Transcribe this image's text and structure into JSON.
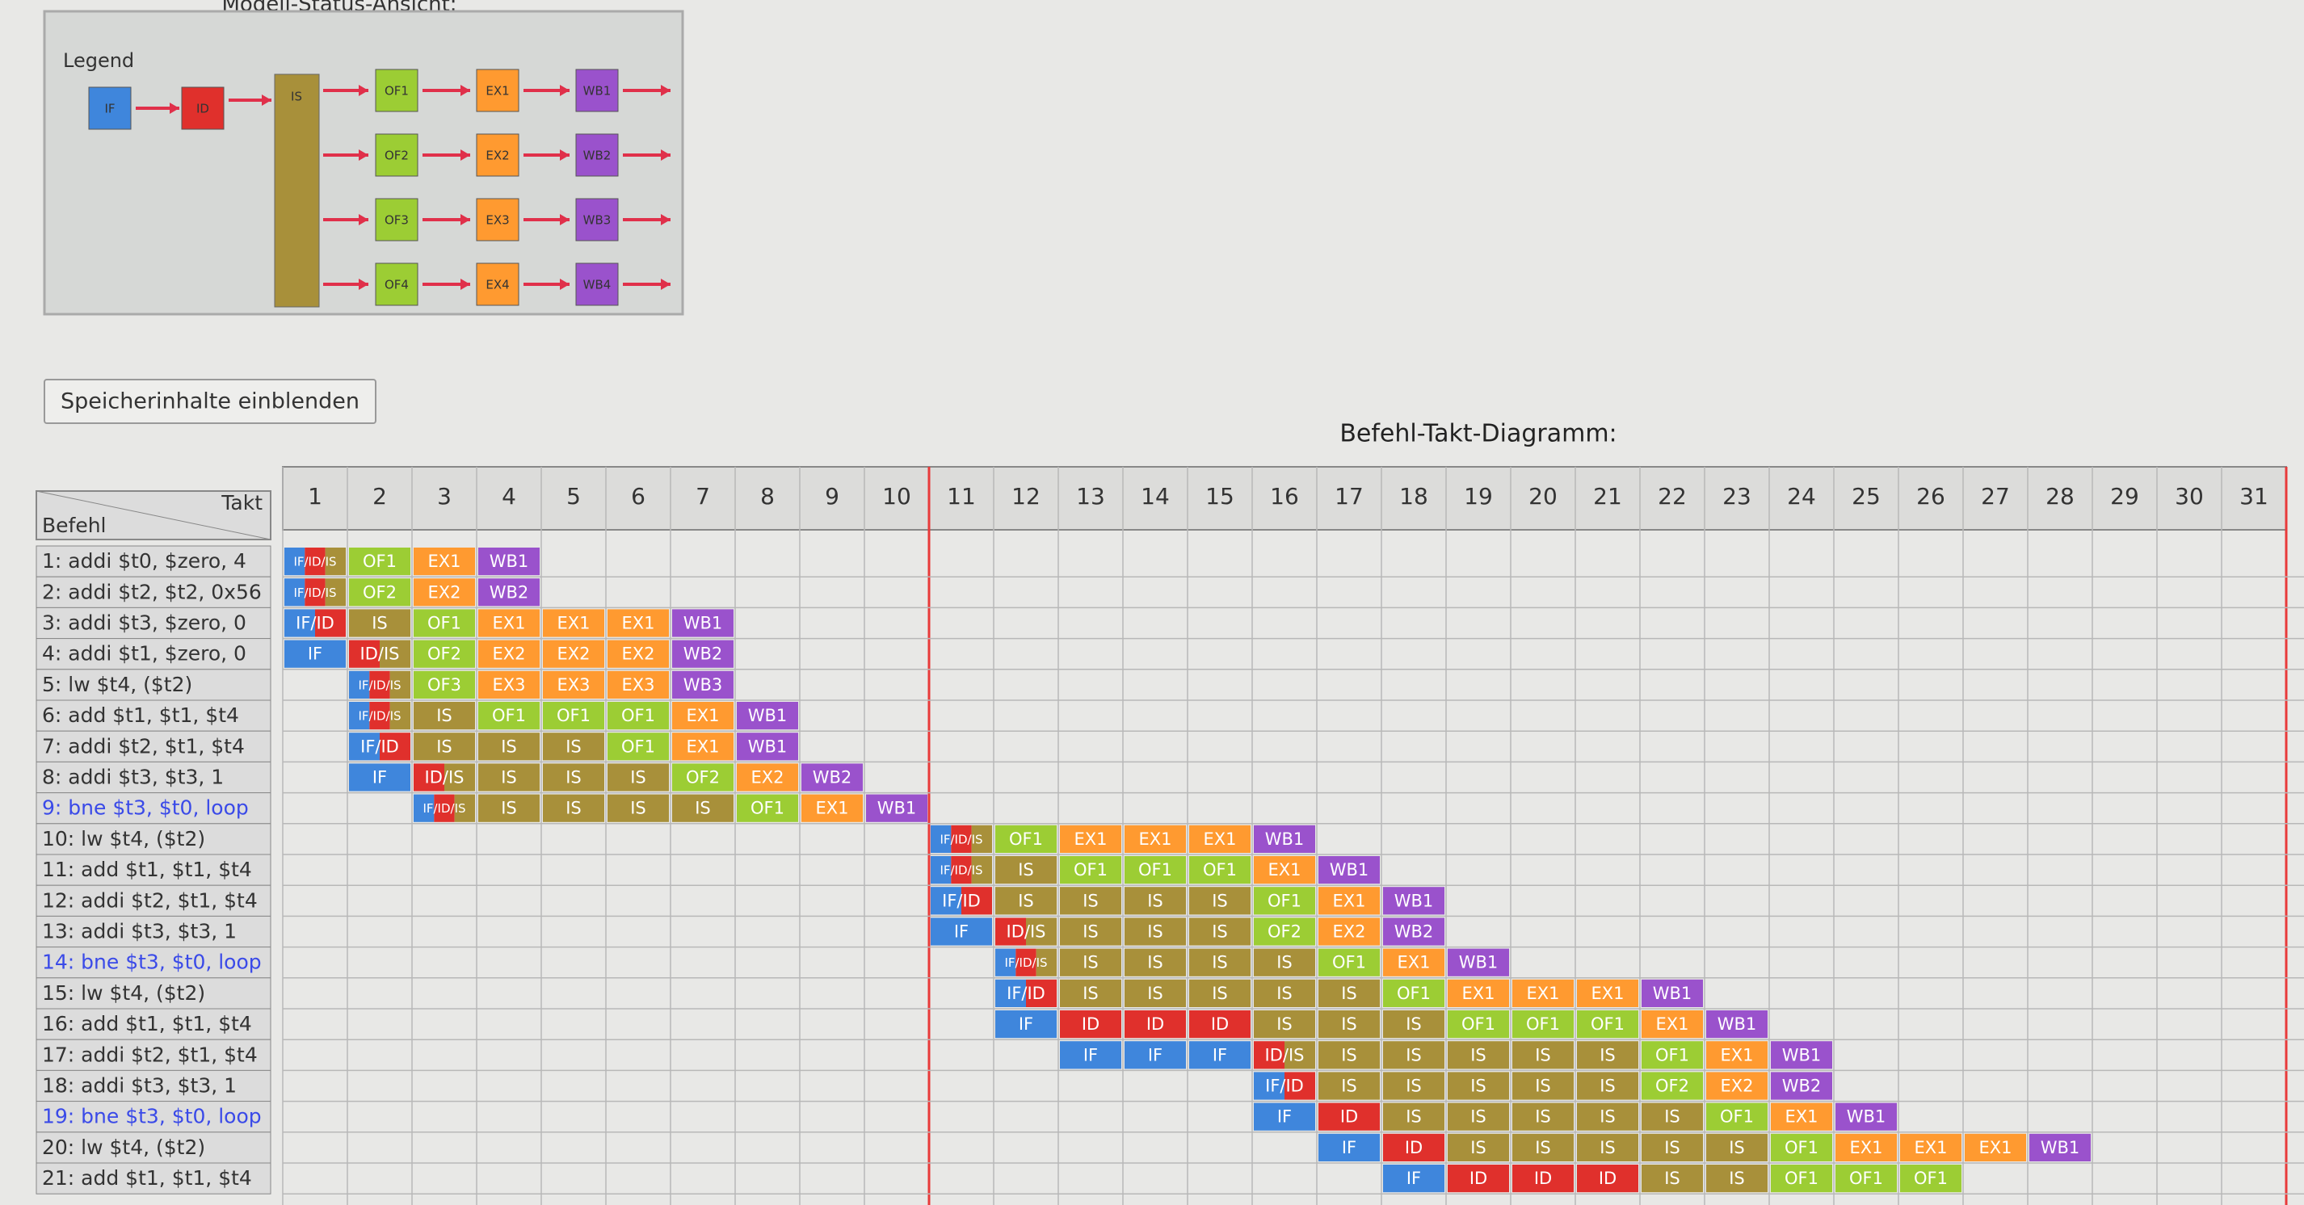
{
  "panel": {
    "title": "Modell-Status-Ansicht:",
    "legend": "Legend",
    "stages": {
      "if": "IF",
      "id": "ID",
      "is": "IS",
      "of": [
        "OF1",
        "OF2",
        "OF3",
        "OF4"
      ],
      "ex": [
        "EX1",
        "EX2",
        "EX3",
        "EX4"
      ],
      "wb": [
        "WB1",
        "WB2",
        "WB3",
        "WB4"
      ]
    }
  },
  "button": "Speicherinhalte einblenden",
  "diagram": {
    "title": "Befehl-Takt-Diagramm:",
    "corner_top": "Takt",
    "corner_bottom": "Befehl",
    "cycles": [
      1,
      2,
      3,
      4,
      5,
      6,
      7,
      8,
      9,
      10,
      11,
      12,
      13,
      14,
      15,
      16,
      17,
      18,
      19,
      20,
      21,
      22,
      23,
      24,
      25,
      26,
      27,
      28,
      29,
      30,
      31
    ],
    "rows": [
      {
        "instruction": "1:  addi $t0, $zero, 4",
        "cells": [
          "IF/ID/IS",
          "OF1",
          "EX1",
          "WB1",
          null,
          null,
          null,
          null,
          null,
          null,
          null,
          null,
          null,
          null,
          null,
          null,
          null,
          null,
          null,
          null,
          null,
          null,
          null,
          null,
          null,
          null,
          null,
          null,
          null,
          null,
          null
        ]
      },
      {
        "instruction": "2:  addi $t2, $t2, 0x56",
        "cells": [
          "IF/ID/IS",
          "OF2",
          "EX2",
          "WB2",
          null,
          null,
          null,
          null,
          null,
          null,
          null,
          null,
          null,
          null,
          null,
          null,
          null,
          null,
          null,
          null,
          null,
          null,
          null,
          null,
          null,
          null,
          null,
          null,
          null,
          null,
          null
        ]
      },
      {
        "instruction": "3:  addi $t3, $zero, 0",
        "cells": [
          "IF/ID",
          "IS",
          "OF1",
          "EX1",
          "EX1",
          "EX1",
          "WB1",
          null,
          null,
          null,
          null,
          null,
          null,
          null,
          null,
          null,
          null,
          null,
          null,
          null,
          null,
          null,
          null,
          null,
          null,
          null,
          null,
          null,
          null,
          null,
          null
        ]
      },
      {
        "instruction": "4:  addi $t1, $zero, 0",
        "cells": [
          "IF",
          "ID/IS",
          "OF2",
          "EX2",
          "EX2",
          "EX2",
          "WB2",
          null,
          null,
          null,
          null,
          null,
          null,
          null,
          null,
          null,
          null,
          null,
          null,
          null,
          null,
          null,
          null,
          null,
          null,
          null,
          null,
          null,
          null,
          null,
          null
        ]
      },
      {
        "instruction": "5:  lw $t4, ($t2)",
        "cells": [
          null,
          "IF/ID/IS",
          "OF3",
          "EX3",
          "EX3",
          "EX3",
          "WB3",
          null,
          null,
          null,
          null,
          null,
          null,
          null,
          null,
          null,
          null,
          null,
          null,
          null,
          null,
          null,
          null,
          null,
          null,
          null,
          null,
          null,
          null,
          null,
          null
        ]
      },
      {
        "instruction": "6:  add $t1, $t1, $t4",
        "cells": [
          null,
          "IF/ID/IS",
          "IS",
          "OF1",
          "OF1",
          "OF1",
          "EX1",
          "WB1",
          null,
          null,
          null,
          null,
          null,
          null,
          null,
          null,
          null,
          null,
          null,
          null,
          null,
          null,
          null,
          null,
          null,
          null,
          null,
          null,
          null,
          null,
          null
        ]
      },
      {
        "instruction": "7:  addi $t2, $t1, $t4",
        "cells": [
          null,
          "IF/ID",
          "IS",
          "IS",
          "IS",
          "OF1",
          "EX1",
          "WB1",
          null,
          null,
          null,
          null,
          null,
          null,
          null,
          null,
          null,
          null,
          null,
          null,
          null,
          null,
          null,
          null,
          null,
          null,
          null,
          null,
          null,
          null,
          null
        ]
      },
      {
        "instruction": "8:  addi $t3, $t3, 1",
        "cells": [
          null,
          "IF",
          "ID/IS",
          "IS",
          "IS",
          "IS",
          "OF2",
          "EX2",
          "WB2",
          null,
          null,
          null,
          null,
          null,
          null,
          null,
          null,
          null,
          null,
          null,
          null,
          null,
          null,
          null,
          null,
          null,
          null,
          null,
          null,
          null,
          null
        ]
      },
      {
        "instruction": "9:  bne $t3, $t0, loop",
        "cells": [
          null,
          null,
          "IF/ID/IS",
          "IS",
          "IS",
          "IS",
          "IS",
          "OF1",
          "EX1",
          "WB1",
          null,
          null,
          null,
          null,
          null,
          null,
          null,
          null,
          null,
          null,
          null,
          null,
          null,
          null,
          null,
          null,
          null,
          null,
          null,
          null,
          null
        ]
      },
      {
        "instruction": "10: lw $t4, ($t2)",
        "cells": [
          null,
          null,
          null,
          null,
          null,
          null,
          null,
          null,
          null,
          null,
          "IF/ID/IS",
          "OF1",
          "EX1",
          "EX1",
          "EX1",
          "WB1",
          null,
          null,
          null,
          null,
          null,
          null,
          null,
          null,
          null,
          null,
          null,
          null,
          null,
          null,
          null
        ]
      },
      {
        "instruction": "11: add $t1, $t1, $t4",
        "cells": [
          null,
          null,
          null,
          null,
          null,
          null,
          null,
          null,
          null,
          null,
          "IF/ID/IS",
          "IS",
          "OF1",
          "OF1",
          "OF1",
          "EX1",
          "WB1",
          null,
          null,
          null,
          null,
          null,
          null,
          null,
          null,
          null,
          null,
          null,
          null,
          null,
          null
        ]
      },
      {
        "instruction": "12: addi $t2, $t1, $t4",
        "cells": [
          null,
          null,
          null,
          null,
          null,
          null,
          null,
          null,
          null,
          null,
          "IF/ID",
          "IS",
          "IS",
          "IS",
          "IS",
          "OF1",
          "EX1",
          "WB1",
          null,
          null,
          null,
          null,
          null,
          null,
          null,
          null,
          null,
          null,
          null,
          null,
          null
        ]
      },
      {
        "instruction": "13: addi $t3, $t3, 1",
        "cells": [
          null,
          null,
          null,
          null,
          null,
          null,
          null,
          null,
          null,
          null,
          "IF",
          "ID/IS",
          "IS",
          "IS",
          "IS",
          "OF2",
          "EX2",
          "WB2",
          null,
          null,
          null,
          null,
          null,
          null,
          null,
          null,
          null,
          null,
          null,
          null,
          null
        ]
      },
      {
        "instruction": "14: bne $t3, $t0, loop",
        "cells": [
          null,
          null,
          null,
          null,
          null,
          null,
          null,
          null,
          null,
          null,
          null,
          "IF/ID/IS",
          "IS",
          "IS",
          "IS",
          "IS",
          "OF1",
          "EX1",
          "WB1",
          null,
          null,
          null,
          null,
          null,
          null,
          null,
          null,
          null,
          null,
          null,
          null
        ]
      },
      {
        "instruction": "15: lw $t4, ($t2)",
        "cells": [
          null,
          null,
          null,
          null,
          null,
          null,
          null,
          null,
          null,
          null,
          null,
          "IF/ID",
          "IS",
          "IS",
          "IS",
          "IS",
          "IS",
          "OF1",
          "EX1",
          "EX1",
          "EX1",
          "WB1",
          null,
          null,
          null,
          null,
          null,
          null,
          null,
          null,
          null
        ]
      },
      {
        "instruction": "16: add $t1, $t1, $t4",
        "cells": [
          null,
          null,
          null,
          null,
          null,
          null,
          null,
          null,
          null,
          null,
          null,
          "IF",
          "ID",
          "ID",
          "ID",
          "IS",
          "IS",
          "IS",
          "OF1",
          "OF1",
          "OF1",
          "EX1",
          "WB1",
          null,
          null,
          null,
          null,
          null,
          null,
          null,
          null
        ]
      },
      {
        "instruction": "17: addi $t2, $t1, $t4",
        "cells": [
          null,
          null,
          null,
          null,
          null,
          null,
          null,
          null,
          null,
          null,
          null,
          null,
          "IF",
          "IF",
          "IF",
          "ID/IS",
          "IS",
          "IS",
          "IS",
          "IS",
          "IS",
          "OF1",
          "EX1",
          "WB1",
          null,
          null,
          null,
          null,
          null,
          null,
          null
        ]
      },
      {
        "instruction": "18: addi $t3, $t3, 1",
        "cells": [
          null,
          null,
          null,
          null,
          null,
          null,
          null,
          null,
          null,
          null,
          null,
          null,
          null,
          null,
          null,
          "IF/ID",
          "IS",
          "IS",
          "IS",
          "IS",
          "IS",
          "OF2",
          "EX2",
          "WB2",
          null,
          null,
          null,
          null,
          null,
          null,
          null
        ]
      },
      {
        "instruction": "19: bne $t3, $t0, loop",
        "cells": [
          null,
          null,
          null,
          null,
          null,
          null,
          null,
          null,
          null,
          null,
          null,
          null,
          null,
          null,
          null,
          "IF",
          "ID",
          "IS",
          "IS",
          "IS",
          "IS",
          "IS",
          "OF1",
          "EX1",
          "WB1",
          null,
          null,
          null,
          null,
          null,
          null
        ]
      },
      {
        "instruction": "20: lw $t4, ($t2)",
        "cells": [
          null,
          null,
          null,
          null,
          null,
          null,
          null,
          null,
          null,
          null,
          null,
          null,
          null,
          null,
          null,
          null,
          "IF",
          "ID",
          "IS",
          "IS",
          "IS",
          "IS",
          "IS",
          "OF1",
          "EX1",
          "EX1",
          "EX1",
          "WB1",
          null,
          null,
          null
        ]
      },
      {
        "instruction": "21: add $t1, $t1, $t4",
        "cells": [
          null,
          null,
          null,
          null,
          null,
          null,
          null,
          null,
          null,
          null,
          null,
          null,
          null,
          null,
          null,
          null,
          null,
          "IF",
          "ID",
          "ID",
          "ID",
          "IS",
          "IS",
          "OF1",
          "OF1",
          "OF1",
          null,
          null,
          null,
          null,
          null
        ]
      }
    ]
  }
}
